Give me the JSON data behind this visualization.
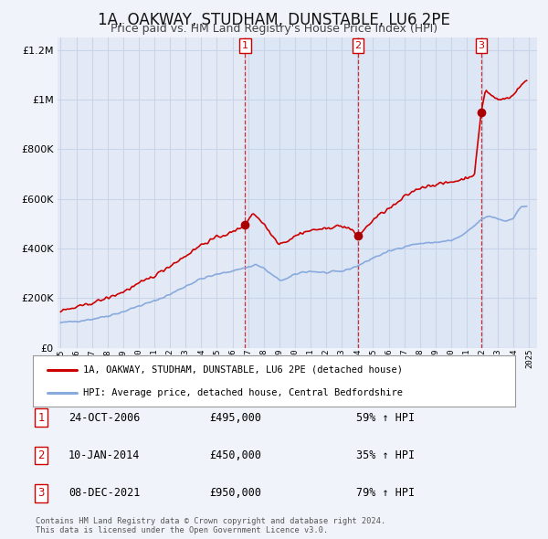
{
  "title": "1A, OAKWAY, STUDHAM, DUNSTABLE, LU6 2PE",
  "subtitle": "Price paid vs. HM Land Registry's House Price Index (HPI)",
  "background_color": "#f0f4fa",
  "plot_bg_color": "#e4eaf5",
  "grid_color": "#d0d8e8",
  "sale_line_color": "#cc0000",
  "hpi_line_color": "#88aadd",
  "sale_marker_color": "#aa0000",
  "vline_color": "#cc0000",
  "shade_color": "#dde6f5",
  "ylim": [
    0,
    1250000
  ],
  "yticks": [
    0,
    200000,
    400000,
    600000,
    800000,
    1000000,
    1200000
  ],
  "ytick_labels": [
    "£0",
    "£200K",
    "£400K",
    "£600K",
    "£800K",
    "£1M",
    "£1.2M"
  ],
  "xmin": 1994.8,
  "xmax": 2025.5,
  "xticks": [
    1995,
    1996,
    1997,
    1998,
    1999,
    2000,
    2001,
    2002,
    2003,
    2004,
    2005,
    2006,
    2007,
    2008,
    2009,
    2010,
    2011,
    2012,
    2013,
    2014,
    2015,
    2016,
    2017,
    2018,
    2019,
    2020,
    2021,
    2022,
    2023,
    2024,
    2025
  ],
  "sale_point1": {
    "year": 2006.81,
    "value": 495000,
    "label": "1"
  },
  "sale_point2": {
    "year": 2014.03,
    "value": 450000,
    "label": "2"
  },
  "sale_point3": {
    "year": 2021.92,
    "value": 950000,
    "label": "3"
  },
  "legend_sale_label": "1A, OAKWAY, STUDHAM, DUNSTABLE, LU6 2PE (detached house)",
  "legend_hpi_label": "HPI: Average price, detached house, Central Bedfordshire",
  "table_entries": [
    {
      "num": "1",
      "date": "24-OCT-2006",
      "price": "£495,000",
      "pct": "59% ↑ HPI"
    },
    {
      "num": "2",
      "date": "10-JAN-2014",
      "price": "£450,000",
      "pct": "35% ↑ HPI"
    },
    {
      "num": "3",
      "date": "08-DEC-2021",
      "price": "£950,000",
      "pct": "79% ↑ HPI"
    }
  ],
  "footnote": "Contains HM Land Registry data © Crown copyright and database right 2024.\nThis data is licensed under the Open Government Licence v3.0."
}
